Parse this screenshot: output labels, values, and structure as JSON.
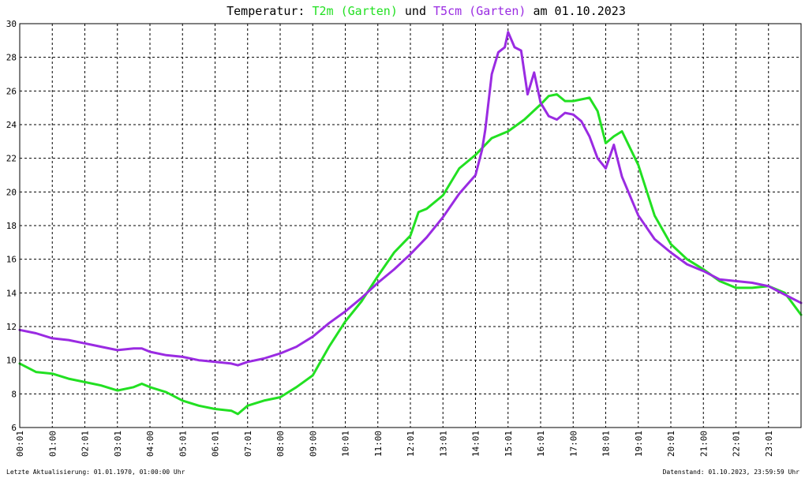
{
  "title": {
    "prefix": "Temperatur: ",
    "series1": "T2m (Garten)",
    "middle": " und ",
    "series2": "T5cm (Garten)",
    "suffix": " am 01.10.2023"
  },
  "footer": {
    "left": "Letzte Aktualisierung: 01.01.1970, 01:00:00 Uhr",
    "right": "Datenstand: 01.10.2023, 23:59:59 Uhr"
  },
  "colors": {
    "series1": "#22e022",
    "series2": "#9a2be2",
    "grid": "#000000",
    "frame": "#000000"
  },
  "chart_data": {
    "type": "line",
    "title": "Temperatur: T2m (Garten) und T5cm (Garten) am 01.10.2023",
    "xlabel": "",
    "ylabel": "",
    "ylim": [
      6,
      30
    ],
    "yticks": [
      6,
      8,
      10,
      12,
      14,
      16,
      18,
      20,
      22,
      24,
      26,
      28,
      30
    ],
    "xticks": [
      "00:01",
      "01:00",
      "02:01",
      "03:01",
      "04:00",
      "05:01",
      "06:01",
      "07:01",
      "08:00",
      "09:00",
      "10:01",
      "11:00",
      "12:01",
      "13:01",
      "14:01",
      "15:01",
      "16:01",
      "17:00",
      "18:01",
      "19:01",
      "20:01",
      "21:00",
      "22:01",
      "23:01"
    ],
    "xlim_hours": [
      0,
      24
    ],
    "grid": true,
    "legend": "none (series named in title)",
    "series": [
      {
        "name": "T2m (Garten)",
        "color": "#22e022",
        "x": [
          0,
          0.5,
          1,
          1.5,
          2,
          2.5,
          3,
          3.5,
          3.75,
          4,
          4.5,
          5,
          5.5,
          6,
          6.5,
          6.7,
          7,
          7.5,
          8,
          8.5,
          9,
          9.5,
          10,
          10.5,
          11,
          11.5,
          12,
          12.25,
          12.5,
          13,
          13.5,
          14,
          14.5,
          15,
          15.5,
          16,
          16.25,
          16.5,
          16.75,
          17,
          17.5,
          17.75,
          18,
          18.25,
          18.5,
          19,
          19.5,
          20,
          20.5,
          21,
          21.5,
          22,
          22.5,
          23,
          23.5,
          24
        ],
        "values": [
          9.8,
          9.3,
          9.2,
          8.9,
          8.7,
          8.5,
          8.2,
          8.4,
          8.6,
          8.4,
          8.1,
          7.6,
          7.3,
          7.1,
          7.0,
          6.8,
          7.3,
          7.6,
          7.8,
          8.4,
          9.1,
          10.8,
          12.3,
          13.5,
          15.0,
          16.4,
          17.4,
          18.8,
          19.0,
          19.8,
          21.4,
          22.2,
          23.2,
          23.6,
          24.3,
          25.2,
          25.7,
          25.8,
          25.4,
          25.4,
          25.6,
          24.8,
          22.9,
          23.3,
          23.6,
          21.6,
          18.6,
          16.9,
          16.0,
          15.4,
          14.7,
          14.3,
          14.3,
          14.4,
          14.0,
          12.7
        ]
      },
      {
        "name": "T5cm (Garten)",
        "color": "#9a2be2",
        "x": [
          0,
          0.5,
          1,
          1.5,
          2,
          2.5,
          3,
          3.5,
          3.75,
          4,
          4.5,
          5,
          5.5,
          6,
          6.5,
          6.7,
          7,
          7.5,
          8,
          8.5,
          9,
          9.5,
          10,
          10.5,
          11,
          11.5,
          12,
          12.5,
          13,
          13.5,
          14,
          14.2,
          14.3,
          14.5,
          14.7,
          14.9,
          15,
          15.2,
          15.4,
          15.6,
          15.8,
          16,
          16.25,
          16.5,
          16.75,
          17,
          17.25,
          17.5,
          17.75,
          18,
          18.25,
          18.5,
          19,
          19.5,
          20,
          20.5,
          21,
          21.5,
          22,
          22.5,
          23,
          23.5,
          24
        ],
        "values": [
          11.8,
          11.6,
          11.3,
          11.2,
          11.0,
          10.8,
          10.6,
          10.7,
          10.7,
          10.5,
          10.3,
          10.2,
          10.0,
          9.9,
          9.8,
          9.7,
          9.9,
          10.1,
          10.4,
          10.8,
          11.4,
          12.2,
          12.9,
          13.7,
          14.6,
          15.4,
          16.3,
          17.3,
          18.5,
          19.9,
          21.0,
          22.5,
          23.7,
          27.0,
          28.3,
          28.6,
          29.5,
          28.6,
          28.4,
          25.8,
          27.1,
          25.3,
          24.5,
          24.3,
          24.7,
          24.6,
          24.2,
          23.3,
          22.0,
          21.4,
          22.8,
          20.9,
          18.6,
          17.2,
          16.4,
          15.7,
          15.3,
          14.8,
          14.7,
          14.6,
          14.4,
          13.9,
          13.4
        ]
      }
    ]
  }
}
